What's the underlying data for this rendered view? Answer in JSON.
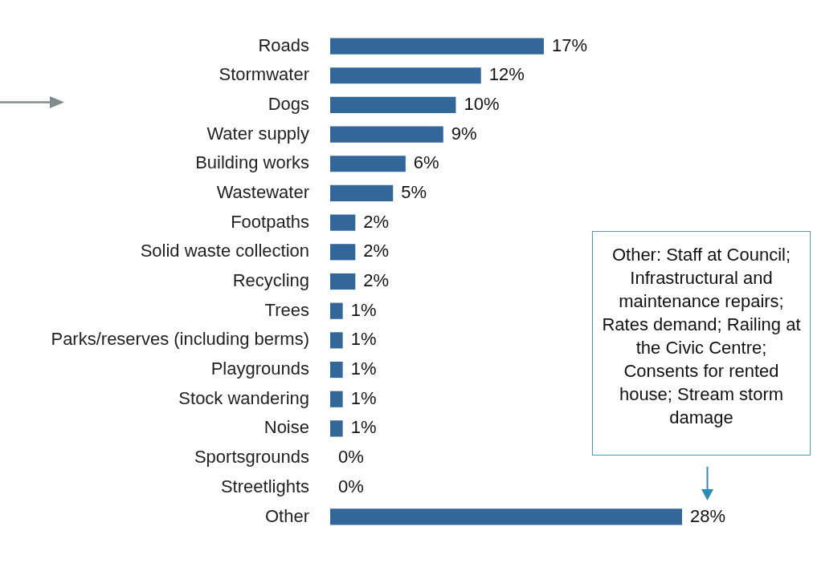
{
  "chart_data": {
    "type": "bar",
    "orientation": "horizontal",
    "categories": [
      "Roads",
      "Stormwater",
      "Dogs",
      "Water supply",
      "Building works",
      "Wastewater",
      "Footpaths",
      "Solid waste collection",
      "Recycling",
      "Trees",
      "Parks/reserves (including berms)",
      "Playgrounds",
      "Stock wandering",
      "Noise",
      "Sportsgrounds",
      "Streetlights",
      "Other"
    ],
    "values": [
      17,
      12,
      10,
      9,
      6,
      5,
      2,
      2,
      2,
      1,
      1,
      1,
      1,
      1,
      0,
      0,
      28
    ],
    "value_labels": [
      "17%",
      "12%",
      "10%",
      "9%",
      "6%",
      "5%",
      "2%",
      "2%",
      "2%",
      "1%",
      "1%",
      "1%",
      "1%",
      "1%",
      "0%",
      "0%",
      "28%"
    ],
    "color": "#336699",
    "xlim": [
      0,
      28
    ],
    "tick_labels": "y",
    "grid": false,
    "legend": false,
    "annotations": [
      "Other: Staff at Council; Infrastructural and maintenance repairs; Rates demand; Railing at the Civic Centre; Consents for rented house; Stream storm damage"
    ]
  }
}
